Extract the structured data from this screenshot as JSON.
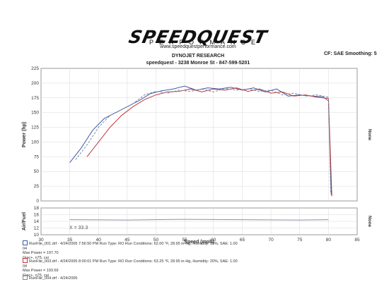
{
  "header": {
    "logo_text": "SPEEDQUEST",
    "logo_subtext": "PERFORMANCE",
    "url": "www.speedquestperformance.com",
    "company": "DYNOJET RESEARCH",
    "address": "speedquest - 3238 Monroe St - 847-599-5201",
    "correction": "CF: SAE  Smoothing: 5"
  },
  "legend": [
    {
      "color": "#3a5aa8",
      "line1": "RunFile_001.drf - 4/24/2005 7:56:50 PM  Run Type: RO  Run Conditions: 62.00 °F, 28.95 in-Hg, Humidity: 19%, SAE: 1.00",
      "line2": "04",
      "line3": "Max Power = 197.70",
      "line4": "Giac+, n75, cai"
    },
    {
      "color": "#c0393b",
      "line1": "RunFile_003.drf - 4/24/2005 8:00:01 PM  Run Type: RO  Run Conditions: 63.25 °F, 28.95 in-Hg, Humidity: 20%, SAE: 1.00",
      "line2": "04",
      "line3": "Max Power = 193.69",
      "line4": "Giac+, n75, cai"
    }
  ],
  "legend_extra": "RunFile_004.drf - 4/24/2005",
  "chart_data": [
    {
      "type": "line",
      "ylabel": "Power (hp)",
      "right_label": "None",
      "ylim": [
        0,
        225
      ],
      "yticks": [
        0,
        25,
        50,
        75,
        100,
        125,
        150,
        175,
        200,
        225
      ],
      "xlim": [
        30,
        85
      ],
      "grid": true,
      "series": [
        {
          "color": "#3a5aa8",
          "x": [
            35,
            37,
            39,
            41,
            43,
            45,
            47,
            49,
            51,
            53,
            55,
            57,
            59,
            61,
            63,
            65,
            67,
            69,
            71,
            73,
            75,
            77,
            79,
            80,
            80.5
          ],
          "y": [
            65,
            90,
            120,
            140,
            150,
            160,
            170,
            182,
            187,
            190,
            195,
            188,
            192,
            190,
            193,
            188,
            192,
            185,
            190,
            178,
            180,
            178,
            177,
            170,
            10
          ]
        },
        {
          "color": "#c0393b",
          "x": [
            38,
            40,
            42,
            44,
            46,
            48,
            50,
            52,
            54,
            56,
            58,
            60,
            62,
            64,
            66,
            68,
            70,
            72,
            74,
            76,
            78,
            80,
            80.6
          ],
          "y": [
            75,
            100,
            125,
            145,
            160,
            172,
            180,
            185,
            186,
            190,
            185,
            190,
            188,
            192,
            186,
            190,
            183,
            185,
            178,
            180,
            176,
            174,
            8
          ]
        },
        {
          "color": "#7a8a9a",
          "x": [
            36,
            38,
            40,
            42,
            44,
            46,
            48,
            50,
            52,
            54,
            56,
            58,
            60,
            62,
            64,
            66,
            68,
            70,
            72,
            74,
            76,
            78,
            80,
            80.4
          ],
          "y": [
            70,
            95,
            125,
            145,
            155,
            165,
            180,
            186,
            183,
            188,
            186,
            190,
            185,
            191,
            188,
            190,
            186,
            188,
            180,
            183,
            178,
            180,
            176,
            12
          ]
        }
      ]
    },
    {
      "type": "line",
      "ylabel": "Air/Fuel",
      "right_label": "None",
      "xlabel": "Speed (mph)",
      "ylim": [
        10,
        18
      ],
      "yticks": [
        10,
        12,
        14,
        16,
        18
      ],
      "xlim": [
        30,
        85
      ],
      "xticks": [
        30,
        35,
        40,
        45,
        50,
        55,
        60,
        65,
        70,
        75,
        80,
        85
      ],
      "annotation": "X = 33.3",
      "series": [
        {
          "color": "#9090a0",
          "x": [
            35,
            45,
            55,
            65,
            75,
            80
          ],
          "y": [
            14.5,
            14.4,
            14.6,
            14.5,
            14.4,
            14.5
          ]
        }
      ]
    }
  ]
}
